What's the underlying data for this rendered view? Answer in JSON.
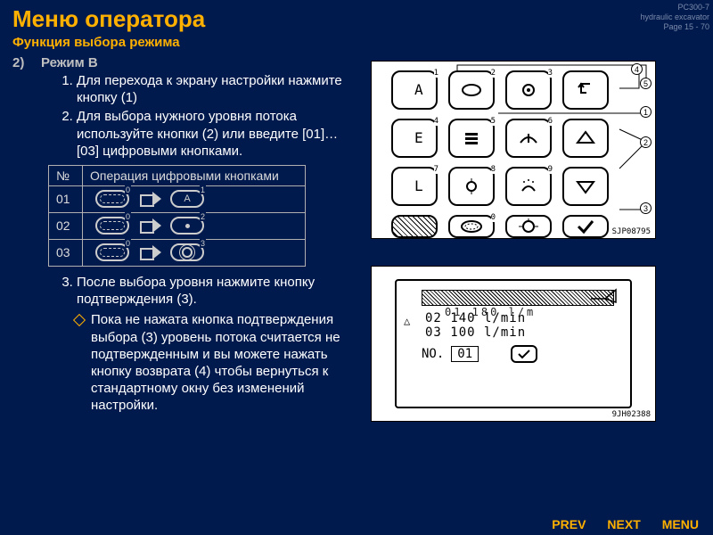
{
  "meta": {
    "model": "PC300-7",
    "doc": "hydraulic excavator",
    "page": "Page 15 - 70"
  },
  "title": "Меню оператора",
  "subtitle": "Функция выбора режима",
  "mode": {
    "num": "2)",
    "name": "Режим B"
  },
  "steps": {
    "s1": "Для перехода к экрану настройки нажмите кнопку (1)",
    "s2": "Для выбора нужного уровня потока используйте кнопки (2) или введите [01]…[03] цифровыми кнопками.",
    "s3": "После выбора уровня нажмите кнопку подтверждения (3).",
    "note": "Пока не нажата кнопка подтверждения выбора (3) уровень потока считается не подтвержденным и вы можете нажать кнопку возврата (4) чтобы вернуться к стандартному окну без изменений настройки."
  },
  "table": {
    "h1": "№",
    "h2": "Операция цифровыми кнопками",
    "rows": [
      {
        "no": "01",
        "sup1": "0",
        "sup2": "1",
        "letter": "A"
      },
      {
        "no": "02",
        "sup1": "0",
        "sup2": "2",
        "letter": ""
      },
      {
        "no": "03",
        "sup1": "0",
        "sup2": "3",
        "letter": ""
      }
    ]
  },
  "keypad": {
    "caption": "SJP08795",
    "callouts": {
      "c1": "1",
      "c2": "2",
      "c3": "3",
      "c4": "4",
      "c5": "5"
    },
    "keys": [
      {
        "n": "1",
        "sym": "A"
      },
      {
        "n": "2",
        "sym": "oval"
      },
      {
        "n": "3",
        "sym": "gear"
      },
      {
        "n": "",
        "sym": "back"
      },
      {
        "n": "4",
        "sym": "E"
      },
      {
        "n": "5",
        "sym": "menu"
      },
      {
        "n": "6",
        "sym": "wiper"
      },
      {
        "n": "",
        "sym": "up"
      },
      {
        "n": "7",
        "sym": "L"
      },
      {
        "n": "8",
        "sym": "light"
      },
      {
        "n": "9",
        "sym": "spray"
      },
      {
        "n": "",
        "sym": "down"
      },
      {
        "n": "",
        "sym": "hatch"
      },
      {
        "n": "0",
        "sym": "track"
      },
      {
        "n": "",
        "sym": "lamp"
      },
      {
        "n": "",
        "sym": "check"
      }
    ]
  },
  "screen": {
    "caption": "9JH02388",
    "line1": "01 180 l/m",
    "line2": "02 140 l/min",
    "line3": "03 100 l/min",
    "no_label": "NO.",
    "no_val": "01"
  },
  "footer": {
    "prev": "PREV",
    "next": "NEXT",
    "menu": "MENU"
  },
  "colors": {
    "bg": "#001a4d",
    "accent": "#ffb000"
  }
}
